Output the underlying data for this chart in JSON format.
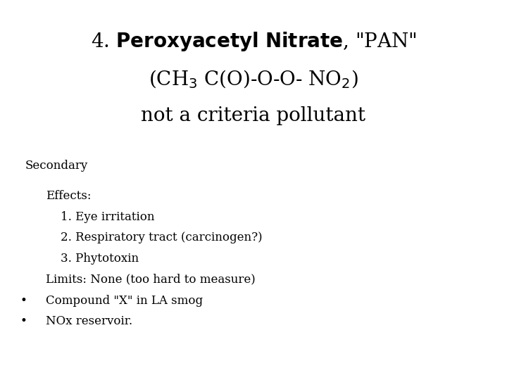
{
  "background_color": "#ffffff",
  "line1": "4. $\\mathbf{Peroxyacetyl\\ Nitrate}$, \"PAN\"",
  "line2": "(CH$_3$ C(O)-O-O- NO$_2$)",
  "line3": "not a criteria pollutant",
  "secondary_label": "Secondary",
  "effects_header": "Effects:",
  "effect1": "1. Eye irritation",
  "effect2": "2. Respiratory tract (carcinogen?)",
  "effect3": "3. Phytotoxin",
  "limits": "Limits: None (too hard to measure)",
  "bullet1": "Compound \"X\" in LA smog",
  "bullet2": "NOx reservoir.",
  "title_fontsize": 20,
  "body_fontsize": 12,
  "secondary_fontsize": 12
}
